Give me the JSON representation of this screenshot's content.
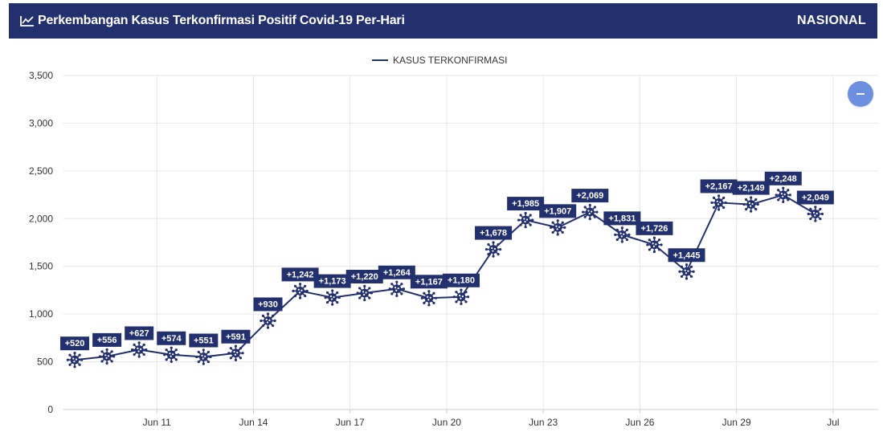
{
  "header": {
    "title": "Perkembangan Kasus Terkonfirmasi Positif Covid-19 Per-Hari",
    "scope": "NASIONAL"
  },
  "colors": {
    "header_bg": "#23306e",
    "series": "#23306e",
    "label_bg": "#23306e",
    "grid": "#e6e6e6",
    "button": "#6d8fe0"
  },
  "icons": {
    "header": "line-chart-icon",
    "marker": "virus-icon",
    "button": "minus-icon"
  },
  "chart_data": {
    "type": "line",
    "legend": {
      "label": "KASUS TERKONFIRMASI",
      "placement": "top-center"
    },
    "ylim": [
      0,
      3500
    ],
    "yticks": [
      "0",
      "500",
      "1,000",
      "1,500",
      "2,000",
      "2,500",
      "3,000",
      "3,500"
    ],
    "ytick_values": [
      0,
      500,
      1000,
      1500,
      2000,
      2500,
      3000,
      3500
    ],
    "xticks": [
      "Jun 11",
      "Jun 14",
      "Jun 17",
      "Jun 20",
      "Jun 23",
      "Jun 26",
      "Jun 29",
      "Jul"
    ],
    "xtick_days": [
      11,
      14,
      17,
      20,
      23,
      26,
      29,
      32
    ],
    "xlim_days": [
      8.1,
      33.4
    ],
    "grid": true,
    "series": [
      {
        "name": "KASUS TERKONFIRMASI",
        "x_days": [
          8.45,
          9.45,
          10.45,
          11.45,
          12.45,
          13.45,
          14.45,
          15.45,
          16.45,
          17.45,
          18.45,
          19.45,
          20.45,
          21.45,
          22.45,
          23.45,
          24.45,
          25.45,
          26.45,
          27.45,
          28.45,
          29.45,
          30.45,
          31.45
        ],
        "values": [
          520,
          556,
          627,
          574,
          551,
          591,
          930,
          1242,
          1173,
          1220,
          1264,
          1167,
          1180,
          1678,
          1985,
          1907,
          2069,
          1831,
          1726,
          1445,
          2167,
          2149,
          2248,
          2049
        ],
        "labels": [
          "+520",
          "+556",
          "+627",
          "+574",
          "+551",
          "+591",
          "+930",
          "+1,242",
          "+1,173",
          "+1,220",
          "+1,264",
          "+1,167",
          "+1,180",
          "+1,678",
          "+1,985",
          "+1,907",
          "+2,069",
          "+1,831",
          "+1,726",
          "+1,445",
          "+2,167",
          "+2,149",
          "+2,248",
          "+2,049"
        ]
      }
    ]
  }
}
